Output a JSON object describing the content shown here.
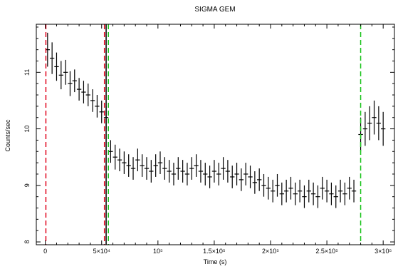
{
  "chart_data": {
    "type": "scatter",
    "title": "SIGMA GEM",
    "xlabel": "Time (s)",
    "ylabel": "Counts/sec",
    "xlim": [
      -8000,
      310000
    ],
    "ylim": [
      7.95,
      11.85
    ],
    "x_ticks": [
      0,
      50000,
      100000,
      150000,
      200000,
      250000,
      300000
    ],
    "x_tick_labels": [
      "0",
      "5×10⁴",
      "10⁵",
      "1.5×10⁵",
      "2×10⁵",
      "2.5×10⁵",
      "3×10⁵"
    ],
    "y_ticks": [
      8,
      9,
      10,
      11
    ],
    "y_tick_labels": [
      "8",
      "9",
      "10",
      "11"
    ],
    "grid": false,
    "legend": "none",
    "series": [
      {
        "marker": "error-bar",
        "color": "#000000",
        "x": [
          2000,
          6000,
          10000,
          14000,
          18000,
          22000,
          26000,
          30000,
          34000,
          38000,
          42000,
          46000,
          50000,
          54000,
          58000,
          62000,
          66000,
          70000,
          74000,
          78000,
          82000,
          86000,
          90000,
          94000,
          98000,
          102000,
          106000,
          110000,
          114000,
          118000,
          122000,
          126000,
          130000,
          134000,
          138000,
          142000,
          146000,
          150000,
          154000,
          158000,
          162000,
          166000,
          170000,
          174000,
          178000,
          182000,
          186000,
          190000,
          194000,
          198000,
          202000,
          206000,
          210000,
          214000,
          218000,
          222000,
          226000,
          230000,
          234000,
          238000,
          242000,
          246000,
          250000,
          254000,
          258000,
          262000,
          266000,
          270000,
          274000,
          280000,
          284000,
          288000,
          292000,
          296000,
          300000
        ],
        "y": [
          11.4,
          11.25,
          11.1,
          10.95,
          11.0,
          10.8,
          10.85,
          10.7,
          10.65,
          10.6,
          10.5,
          10.4,
          10.3,
          10.2,
          9.6,
          9.5,
          9.45,
          9.4,
          9.35,
          9.3,
          9.45,
          9.35,
          9.3,
          9.25,
          9.35,
          9.4,
          9.3,
          9.25,
          9.2,
          9.3,
          9.25,
          9.2,
          9.3,
          9.35,
          9.25,
          9.2,
          9.15,
          9.25,
          9.2,
          9.3,
          9.25,
          9.15,
          9.2,
          9.1,
          9.2,
          9.15,
          9.05,
          9.1,
          9.0,
          8.95,
          8.9,
          9.0,
          8.85,
          8.9,
          8.95,
          8.85,
          8.9,
          8.8,
          8.9,
          8.85,
          8.8,
          8.95,
          8.9,
          8.85,
          8.8,
          8.9,
          8.85,
          8.95,
          8.9,
          9.9,
          10.0,
          10.1,
          10.2,
          10.1,
          10.0
        ],
        "err": [
          0.3,
          0.28,
          0.25,
          0.25,
          0.22,
          0.22,
          0.2,
          0.2,
          0.2,
          0.2,
          0.2,
          0.2,
          0.2,
          0.2,
          0.2,
          0.22,
          0.2,
          0.2,
          0.2,
          0.2,
          0.2,
          0.2,
          0.2,
          0.2,
          0.2,
          0.2,
          0.2,
          0.2,
          0.2,
          0.2,
          0.2,
          0.2,
          0.2,
          0.2,
          0.2,
          0.2,
          0.2,
          0.2,
          0.2,
          0.2,
          0.2,
          0.2,
          0.2,
          0.2,
          0.2,
          0.2,
          0.2,
          0.2,
          0.2,
          0.2,
          0.2,
          0.2,
          0.2,
          0.2,
          0.2,
          0.2,
          0.2,
          0.2,
          0.2,
          0.2,
          0.2,
          0.2,
          0.2,
          0.2,
          0.2,
          0.2,
          0.2,
          0.2,
          0.2,
          0.3,
          0.3,
          0.3,
          0.3,
          0.3,
          0.3
        ]
      }
    ],
    "vertical_lines": [
      {
        "x": 500,
        "color": "#e0001a",
        "style": "dashed"
      },
      {
        "x": 52500,
        "color": "#e0001a",
        "style": "dashed"
      },
      {
        "x": 54000,
        "color": "#000000",
        "style": "solid"
      },
      {
        "x": 56000,
        "color": "#19c31a",
        "style": "dashed"
      },
      {
        "x": 280000,
        "color": "#19c31a",
        "style": "dashed"
      }
    ]
  }
}
